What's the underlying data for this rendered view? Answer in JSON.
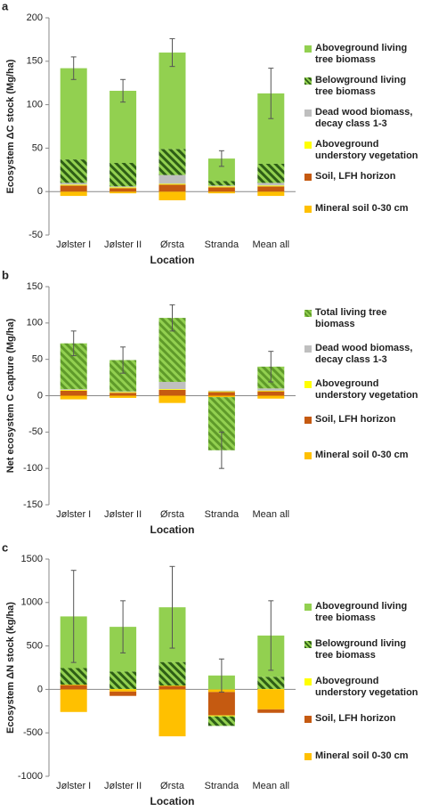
{
  "chart_data": [
    {
      "type": "bar",
      "panel": "a",
      "y_label": "Ecosystem ΔC stock (Mg/ha)",
      "x_label": "Location",
      "categories": [
        "Jølster I",
        "Jølster II",
        "Ørsta",
        "Stranda",
        "Mean all"
      ],
      "ylim": [
        -50,
        200
      ],
      "yticks": [
        -50,
        0,
        50,
        100,
        150,
        200
      ],
      "series": [
        {
          "name": "Aboveground living tree biomass",
          "color": "#92d050",
          "values": [
            105,
            83,
            111,
            26,
            81
          ],
          "errors": [
            13,
            13,
            16,
            9,
            29
          ]
        },
        {
          "name": "Belowground living tree biomass",
          "color": "#2e5e16",
          "hatch_color": "#92d050",
          "values": [
            27,
            27,
            30,
            5,
            22
          ]
        },
        {
          "name": "Dead wood biomass, decay class 1-3",
          "color": "#bfbfbf",
          "values": [
            2,
            1,
            10,
            1,
            3
          ]
        },
        {
          "name": "Aboveground understory vegetation",
          "color": "#ffff00",
          "values": [
            1,
            1,
            1,
            1,
            1
          ]
        },
        {
          "name": "Soil, LFH horizon",
          "color": "#c55a11",
          "values": [
            7,
            4,
            8,
            5,
            6
          ]
        },
        {
          "name": "Mineral soil 0-30 cm",
          "color": "#ffc000",
          "values": [
            -5,
            -2,
            -10,
            -2,
            -5
          ]
        }
      ]
    },
    {
      "type": "bar",
      "panel": "b",
      "y_label": "Net ecosystem C capture (Mg/ha)",
      "x_label": "Location",
      "categories": [
        "Jølster I",
        "Jølster II",
        "Ørsta",
        "Stranda",
        "Mean all"
      ],
      "ylim": [
        -150,
        150
      ],
      "yticks": [
        -150,
        -100,
        -50,
        0,
        50,
        100,
        150
      ],
      "series": [
        {
          "name": "Total living tree biomass",
          "color": "#92d050",
          "hatch_color": "#5f9a2a",
          "values": [
            63,
            43,
            88,
            -73,
            30
          ],
          "errors": [
            17,
            18,
            18,
            25,
            21
          ]
        },
        {
          "name": "Dead wood biomass, decay class 1-3",
          "color": "#bfbfbf",
          "values": [
            1,
            1,
            10,
            1,
            3
          ]
        },
        {
          "name": "Aboveground understory vegetation",
          "color": "#ffff00",
          "values": [
            1,
            1,
            1,
            1,
            1
          ]
        },
        {
          "name": "Soil, LFH horizon",
          "color": "#c55a11",
          "values": [
            7,
            4,
            8,
            5,
            6
          ]
        },
        {
          "name": "Mineral soil 0-30 cm",
          "color": "#ffc000",
          "values": [
            -5,
            -3,
            -10,
            -2,
            -4
          ]
        }
      ]
    },
    {
      "type": "bar",
      "panel": "c",
      "y_label": "Ecosystem ΔN stock (kg/ha)",
      "x_label": "Location",
      "categories": [
        "Jølster I",
        "Jølster II",
        "Ørsta",
        "Stranda",
        "Mean all"
      ],
      "ylim": [
        -1000,
        1500
      ],
      "yticks": [
        -1000,
        -500,
        0,
        500,
        1000,
        1500
      ],
      "series": [
        {
          "name": "Aboveground living tree biomass",
          "color": "#92d050",
          "values": [
            595,
            515,
            630,
            160,
            475
          ],
          "errors": [
            530,
            300,
            470,
            190,
            400
          ]
        },
        {
          "name": "Belowground living tree biomass",
          "color": "#2e5e16",
          "hatch_color": "#92d050",
          "values": [
            190,
            200,
            270,
            -110,
            140
          ]
        },
        {
          "name": "Aboveground understory vegetation",
          "color": "#ffff00",
          "values": [
            5,
            5,
            5,
            -10,
            5
          ]
        },
        {
          "name": "Soil, LFH horizon",
          "color": "#c55a11",
          "values": [
            50,
            -50,
            40,
            -270,
            -40
          ]
        },
        {
          "name": "Mineral soil 0-30 cm",
          "color": "#ffc000",
          "values": [
            -260,
            -25,
            -540,
            -30,
            -230
          ]
        }
      ]
    }
  ]
}
